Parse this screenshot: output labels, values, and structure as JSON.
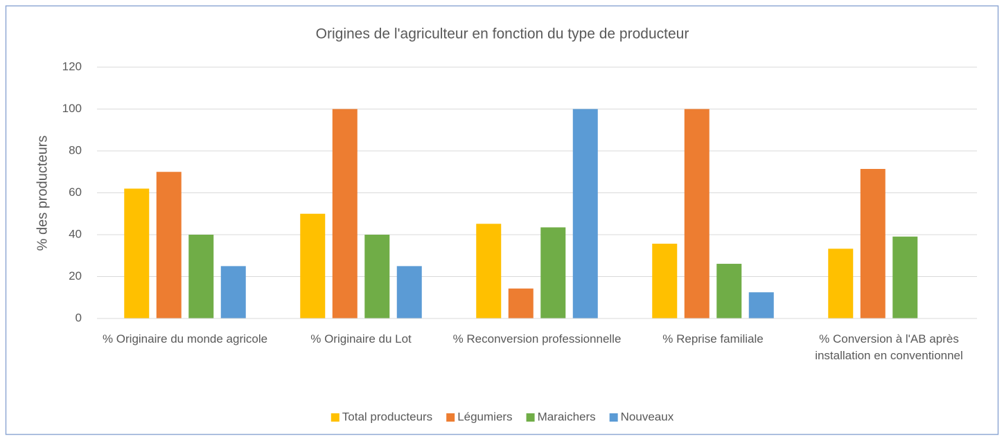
{
  "chart_data": {
    "type": "bar",
    "title": "Origines de l'agriculteur en fonction du type de producteur",
    "y_label": "% des producteurs",
    "categories": [
      "% Originaire du monde agricole",
      "% Originaire du Lot",
      "% Reconversion professionnelle",
      "% Reprise familiale",
      "% Conversion à l'AB après installation en conventionnel"
    ],
    "series": [
      {
        "name": "Total producteurs",
        "color": "#ffc000",
        "values": [
          62,
          50,
          45.2,
          35.7,
          33.3
        ]
      },
      {
        "name": "Légumiers",
        "color": "#ed7d31",
        "values": [
          70,
          100,
          14.3,
          100,
          71.4
        ]
      },
      {
        "name": "Maraichers",
        "color": "#70ad47",
        "values": [
          40,
          40,
          43.5,
          26.1,
          39.1
        ]
      },
      {
        "name": "Nouveaux",
        "color": "#5b9bd5",
        "values": [
          25,
          25,
          100,
          12.5,
          0
        ]
      }
    ],
    "ylim": [
      0,
      120
    ],
    "yticks": [
      0,
      20,
      40,
      60,
      80,
      100,
      120
    ],
    "grid": true,
    "legend": "bottom"
  }
}
